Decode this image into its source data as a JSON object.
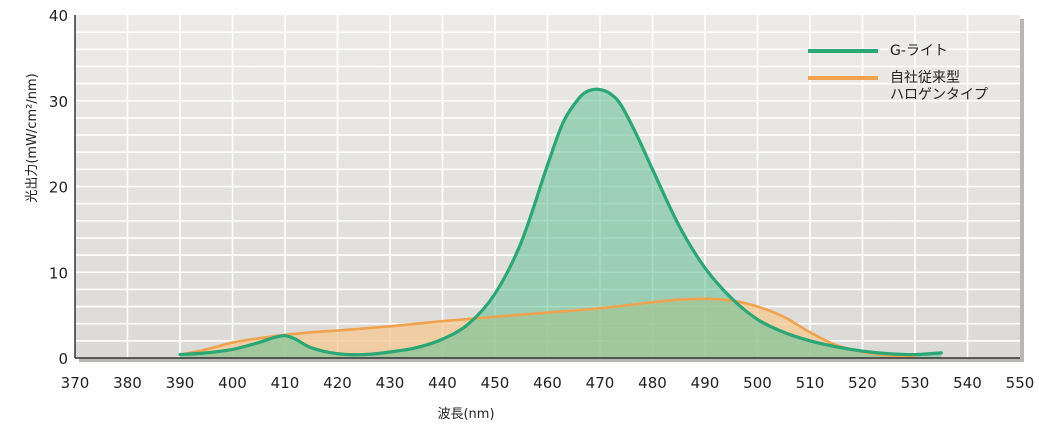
{
  "chart_data": {
    "type": "area",
    "xlabel": "波長(nm)",
    "ylabel": "光出力(mW/cm²/nm)",
    "xlim": [
      370,
      550
    ],
    "ylim": [
      0,
      40
    ],
    "x_ticks": [
      370,
      380,
      390,
      400,
      410,
      420,
      430,
      440,
      450,
      460,
      470,
      480,
      490,
      500,
      510,
      520,
      530,
      540,
      550
    ],
    "y_ticks": [
      0,
      10,
      20,
      30,
      40
    ],
    "grid": true,
    "legend_position": "top-right",
    "series": [
      {
        "name": "自社従来型\nハロゲンタイプ",
        "color": "#f0a24e",
        "fill": "#f5c890",
        "x": [
          391,
          395,
          400,
          405,
          410,
          415,
          420,
          430,
          440,
          450,
          460,
          470,
          480,
          485,
          490,
          495,
          500,
          505,
          510,
          515,
          520,
          525,
          530
        ],
        "y": [
          0.5,
          1.0,
          1.8,
          2.3,
          2.7,
          3.0,
          3.2,
          3.7,
          4.3,
          4.8,
          5.3,
          5.8,
          6.5,
          6.8,
          6.9,
          6.7,
          6.0,
          4.8,
          3.0,
          1.5,
          0.7,
          0.3,
          0.2
        ]
      },
      {
        "name": "G-ライト",
        "color": "#2aa775",
        "fill": "#6dc39a",
        "x": [
          390,
          395,
          400,
          405,
          408,
          410,
          412,
          415,
          420,
          425,
          430,
          435,
          440,
          445,
          450,
          455,
          460,
          463,
          466,
          468,
          470,
          472,
          474,
          477,
          480,
          485,
          490,
          495,
          500,
          505,
          510,
          515,
          520,
          525,
          530,
          535
        ],
        "y": [
          0.4,
          0.6,
          1.0,
          1.8,
          2.4,
          2.6,
          2.2,
          1.2,
          0.5,
          0.4,
          0.7,
          1.2,
          2.2,
          4.0,
          7.5,
          13.5,
          22.5,
          27.5,
          30.3,
          31.2,
          31.3,
          30.8,
          29.5,
          26.0,
          22.0,
          15.5,
          10.5,
          7.0,
          4.5,
          3.0,
          2.0,
          1.3,
          0.8,
          0.5,
          0.4,
          0.6
        ]
      }
    ]
  }
}
